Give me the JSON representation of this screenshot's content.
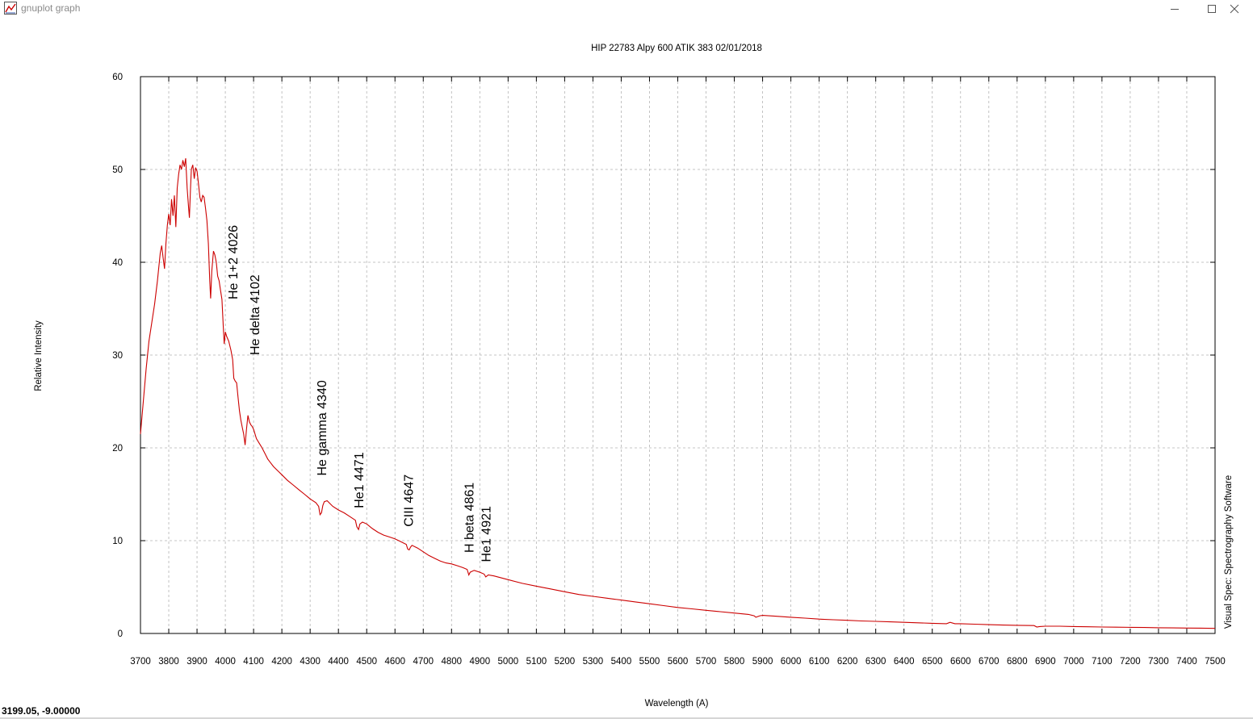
{
  "window": {
    "title": "gnuplot graph",
    "icon": "gnuplot-graph-icon",
    "controls": [
      "minimize-icon",
      "maximize-icon",
      "close-icon"
    ]
  },
  "status_bar": {
    "coordinates": "3199.05, -9.00000"
  },
  "colors": {
    "series": "#cc0000",
    "grid": "#b4b4b4",
    "text": "#000000",
    "window_title_text": "#8a8a8a"
  },
  "chart_data": {
    "type": "line",
    "title": "HIP 22783  Alpy 600 ATIK 383  02/01/2018",
    "xlabel": "Wavelength (A)",
    "ylabel": "Relative Intensity",
    "right_label": "Visual Spec: Spectrography Software",
    "xlim": [
      3700,
      7500
    ],
    "ylim": [
      0,
      60
    ],
    "x_ticks": [
      3700,
      3800,
      3900,
      4000,
      4100,
      4200,
      4300,
      4400,
      4500,
      4600,
      4700,
      4800,
      4900,
      5000,
      5100,
      5200,
      5300,
      5400,
      5500,
      5600,
      5700,
      5800,
      5900,
      6000,
      6100,
      6200,
      6300,
      6400,
      6500,
      6600,
      6700,
      6800,
      6900,
      7000,
      7100,
      7200,
      7300,
      7400,
      7500
    ],
    "y_ticks": [
      0,
      10,
      20,
      30,
      40,
      50,
      60
    ],
    "grid": true,
    "legend": "none",
    "series": [
      {
        "points": [
          [
            3700,
            21.5
          ],
          [
            3710,
            25
          ],
          [
            3720,
            28.5
          ],
          [
            3730,
            31.5
          ],
          [
            3740,
            33.5
          ],
          [
            3750,
            35.5
          ],
          [
            3760,
            38
          ],
          [
            3770,
            41
          ],
          [
            3775,
            41.8
          ],
          [
            3780,
            40.5
          ],
          [
            3785,
            39.3
          ],
          [
            3790,
            42
          ],
          [
            3795,
            44
          ],
          [
            3800,
            45.2
          ],
          [
            3805,
            44
          ],
          [
            3810,
            46.8
          ],
          [
            3815,
            45
          ],
          [
            3820,
            47.2
          ],
          [
            3825,
            43.8
          ],
          [
            3830,
            48
          ],
          [
            3835,
            49.5
          ],
          [
            3840,
            50.5
          ],
          [
            3845,
            50
          ],
          [
            3850,
            51
          ],
          [
            3855,
            50.3
          ],
          [
            3860,
            51.2
          ],
          [
            3865,
            48
          ],
          [
            3870,
            46
          ],
          [
            3873,
            44.8
          ],
          [
            3877,
            48
          ],
          [
            3880,
            50
          ],
          [
            3885,
            50.5
          ],
          [
            3890,
            49
          ],
          [
            3895,
            50.2
          ],
          [
            3900,
            49.8
          ],
          [
            3905,
            48.5
          ],
          [
            3910,
            47
          ],
          [
            3915,
            46.5
          ],
          [
            3920,
            47.2
          ],
          [
            3925,
            47
          ],
          [
            3930,
            45.8
          ],
          [
            3935,
            44.5
          ],
          [
            3940,
            42
          ],
          [
            3945,
            38
          ],
          [
            3948,
            36.1
          ],
          [
            3952,
            39
          ],
          [
            3958,
            41.2
          ],
          [
            3963,
            40.8
          ],
          [
            3968,
            40
          ],
          [
            3973,
            38.5
          ],
          [
            3978,
            38
          ],
          [
            3983,
            37
          ],
          [
            3988,
            36
          ],
          [
            3993,
            33
          ],
          [
            3996,
            31.2
          ],
          [
            4000,
            32.5
          ],
          [
            4005,
            32
          ],
          [
            4012,
            31.5
          ],
          [
            4020,
            30.5
          ],
          [
            4026,
            29.5
          ],
          [
            4030,
            27.5
          ],
          [
            4035,
            27.2
          ],
          [
            4040,
            27
          ],
          [
            4045,
            25.5
          ],
          [
            4050,
            24
          ],
          [
            4055,
            23
          ],
          [
            4060,
            22.2
          ],
          [
            4065,
            21.5
          ],
          [
            4070,
            20.3
          ],
          [
            4075,
            22
          ],
          [
            4080,
            23.5
          ],
          [
            4085,
            22.8
          ],
          [
            4090,
            22.5
          ],
          [
            4095,
            22.3
          ],
          [
            4100,
            22
          ],
          [
            4110,
            21
          ],
          [
            4120,
            20.5
          ],
          [
            4130,
            20
          ],
          [
            4140,
            19.4
          ],
          [
            4150,
            18.8
          ],
          [
            4160,
            18.4
          ],
          [
            4170,
            18
          ],
          [
            4180,
            17.7
          ],
          [
            4190,
            17.4
          ],
          [
            4200,
            17.1
          ],
          [
            4220,
            16.5
          ],
          [
            4240,
            16
          ],
          [
            4260,
            15.5
          ],
          [
            4280,
            15
          ],
          [
            4300,
            14.5
          ],
          [
            4320,
            14.1
          ],
          [
            4330,
            13.7
          ],
          [
            4335,
            12.8
          ],
          [
            4340,
            13
          ],
          [
            4345,
            13.8
          ],
          [
            4350,
            14.2
          ],
          [
            4360,
            14.3
          ],
          [
            4370,
            14
          ],
          [
            4380,
            13.7
          ],
          [
            4400,
            13.3
          ],
          [
            4420,
            13
          ],
          [
            4440,
            12.6
          ],
          [
            4460,
            12.2
          ],
          [
            4465,
            11.5
          ],
          [
            4471,
            11.2
          ],
          [
            4476,
            11.8
          ],
          [
            4485,
            12
          ],
          [
            4500,
            11.8
          ],
          [
            4520,
            11.3
          ],
          [
            4540,
            10.9
          ],
          [
            4560,
            10.6
          ],
          [
            4580,
            10.4
          ],
          [
            4600,
            10.2
          ],
          [
            4620,
            9.9
          ],
          [
            4640,
            9.6
          ],
          [
            4645,
            9.1
          ],
          [
            4650,
            9
          ],
          [
            4655,
            9.3
          ],
          [
            4660,
            9.5
          ],
          [
            4680,
            9.2
          ],
          [
            4700,
            8.8
          ],
          [
            4720,
            8.4
          ],
          [
            4740,
            8.1
          ],
          [
            4760,
            7.8
          ],
          [
            4780,
            7.6
          ],
          [
            4800,
            7.5
          ],
          [
            4820,
            7.3
          ],
          [
            4840,
            7.1
          ],
          [
            4855,
            6.9
          ],
          [
            4861,
            6.3
          ],
          [
            4866,
            6.6
          ],
          [
            4880,
            6.8
          ],
          [
            4900,
            6.6
          ],
          [
            4915,
            6.4
          ],
          [
            4921,
            6.1
          ],
          [
            4930,
            6.3
          ],
          [
            4950,
            6.2
          ],
          [
            5000,
            5.8
          ],
          [
            5050,
            5.4
          ],
          [
            5100,
            5.1
          ],
          [
            5150,
            4.8
          ],
          [
            5200,
            4.5
          ],
          [
            5250,
            4.2
          ],
          [
            5300,
            4
          ],
          [
            5350,
            3.8
          ],
          [
            5400,
            3.6
          ],
          [
            5450,
            3.4
          ],
          [
            5500,
            3.2
          ],
          [
            5550,
            3
          ],
          [
            5600,
            2.8
          ],
          [
            5650,
            2.65
          ],
          [
            5700,
            2.5
          ],
          [
            5750,
            2.35
          ],
          [
            5800,
            2.2
          ],
          [
            5850,
            2.05
          ],
          [
            5870,
            1.9
          ],
          [
            5876,
            1.75
          ],
          [
            5890,
            1.9
          ],
          [
            5900,
            1.95
          ],
          [
            5950,
            1.85
          ],
          [
            6000,
            1.75
          ],
          [
            6050,
            1.65
          ],
          [
            6100,
            1.55
          ],
          [
            6150,
            1.48
          ],
          [
            6200,
            1.42
          ],
          [
            6250,
            1.35
          ],
          [
            6300,
            1.3
          ],
          [
            6350,
            1.25
          ],
          [
            6400,
            1.2
          ],
          [
            6450,
            1.15
          ],
          [
            6500,
            1.1
          ],
          [
            6550,
            1.05
          ],
          [
            6563,
            1.2
          ],
          [
            6580,
            1.05
          ],
          [
            6600,
            1.05
          ],
          [
            6650,
            1
          ],
          [
            6700,
            0.95
          ],
          [
            6750,
            0.9
          ],
          [
            6800,
            0.88
          ],
          [
            6860,
            0.85
          ],
          [
            6870,
            0.7
          ],
          [
            6880,
            0.75
          ],
          [
            6900,
            0.78
          ],
          [
            6950,
            0.78
          ],
          [
            7000,
            0.75
          ],
          [
            7050,
            0.72
          ],
          [
            7100,
            0.7
          ],
          [
            7150,
            0.68
          ],
          [
            7200,
            0.66
          ],
          [
            7250,
            0.64
          ],
          [
            7300,
            0.62
          ],
          [
            7350,
            0.6
          ],
          [
            7400,
            0.58
          ],
          [
            7450,
            0.57
          ],
          [
            7500,
            0.55
          ]
        ]
      }
    ],
    "annotations": [
      {
        "text": "He 1+2 4026",
        "x": 4026,
        "y": 36
      },
      {
        "text": "He delta 4102",
        "x": 4102,
        "y": 30
      },
      {
        "text": "He gamma 4340",
        "x": 4340,
        "y": 17
      },
      {
        "text": "He1 4471",
        "x": 4471,
        "y": 13.5
      },
      {
        "text": "CIII 4647",
        "x": 4647,
        "y": 11.5
      },
      {
        "text": "H beta 4861",
        "x": 4861,
        "y": 8.7
      },
      {
        "text": "He1 4921",
        "x": 4921,
        "y": 7.7
      }
    ]
  }
}
